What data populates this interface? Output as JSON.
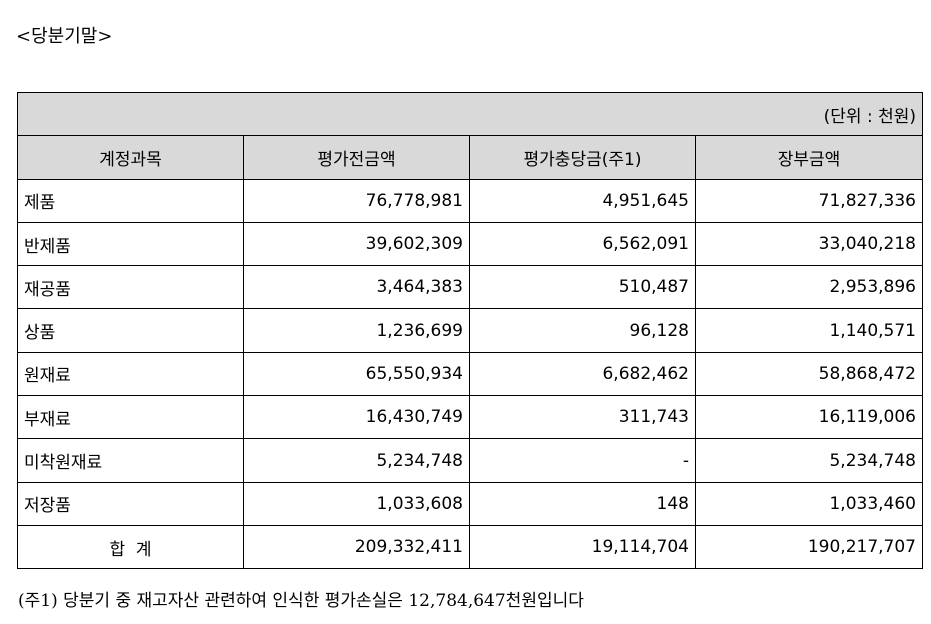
{
  "heading": "<당분기말>",
  "table": {
    "unit": "(단위 : 천원)",
    "columns": [
      "계정과목",
      "평가전금액",
      "평가충당금(주1)",
      "장부금액"
    ],
    "rows": [
      [
        "제품",
        "76,778,981",
        "4,951,645",
        "71,827,336"
      ],
      [
        "반제품",
        "39,602,309",
        "6,562,091",
        "33,040,218"
      ],
      [
        "재공품",
        "3,464,383",
        "510,487",
        "2,953,896"
      ],
      [
        "상품",
        "1,236,699",
        "96,128",
        "1,140,571"
      ],
      [
        "원재료",
        "65,550,934",
        "6,682,462",
        "58,868,472"
      ],
      [
        "부재료",
        "16,430,749",
        "311,743",
        "16,119,006"
      ],
      [
        "미착원재료",
        "5,234,748",
        "-",
        "5,234,748"
      ],
      [
        "저장품",
        "1,033,608",
        "148",
        "1,033,460"
      ]
    ],
    "total": [
      "합  계",
      "209,332,411",
      "19,114,704",
      "190,217,707"
    ]
  },
  "footnote": "(주1) 당분기 중 재고자산 관련하여 인식한 평가손실은 12,784,647천원입니다"
}
